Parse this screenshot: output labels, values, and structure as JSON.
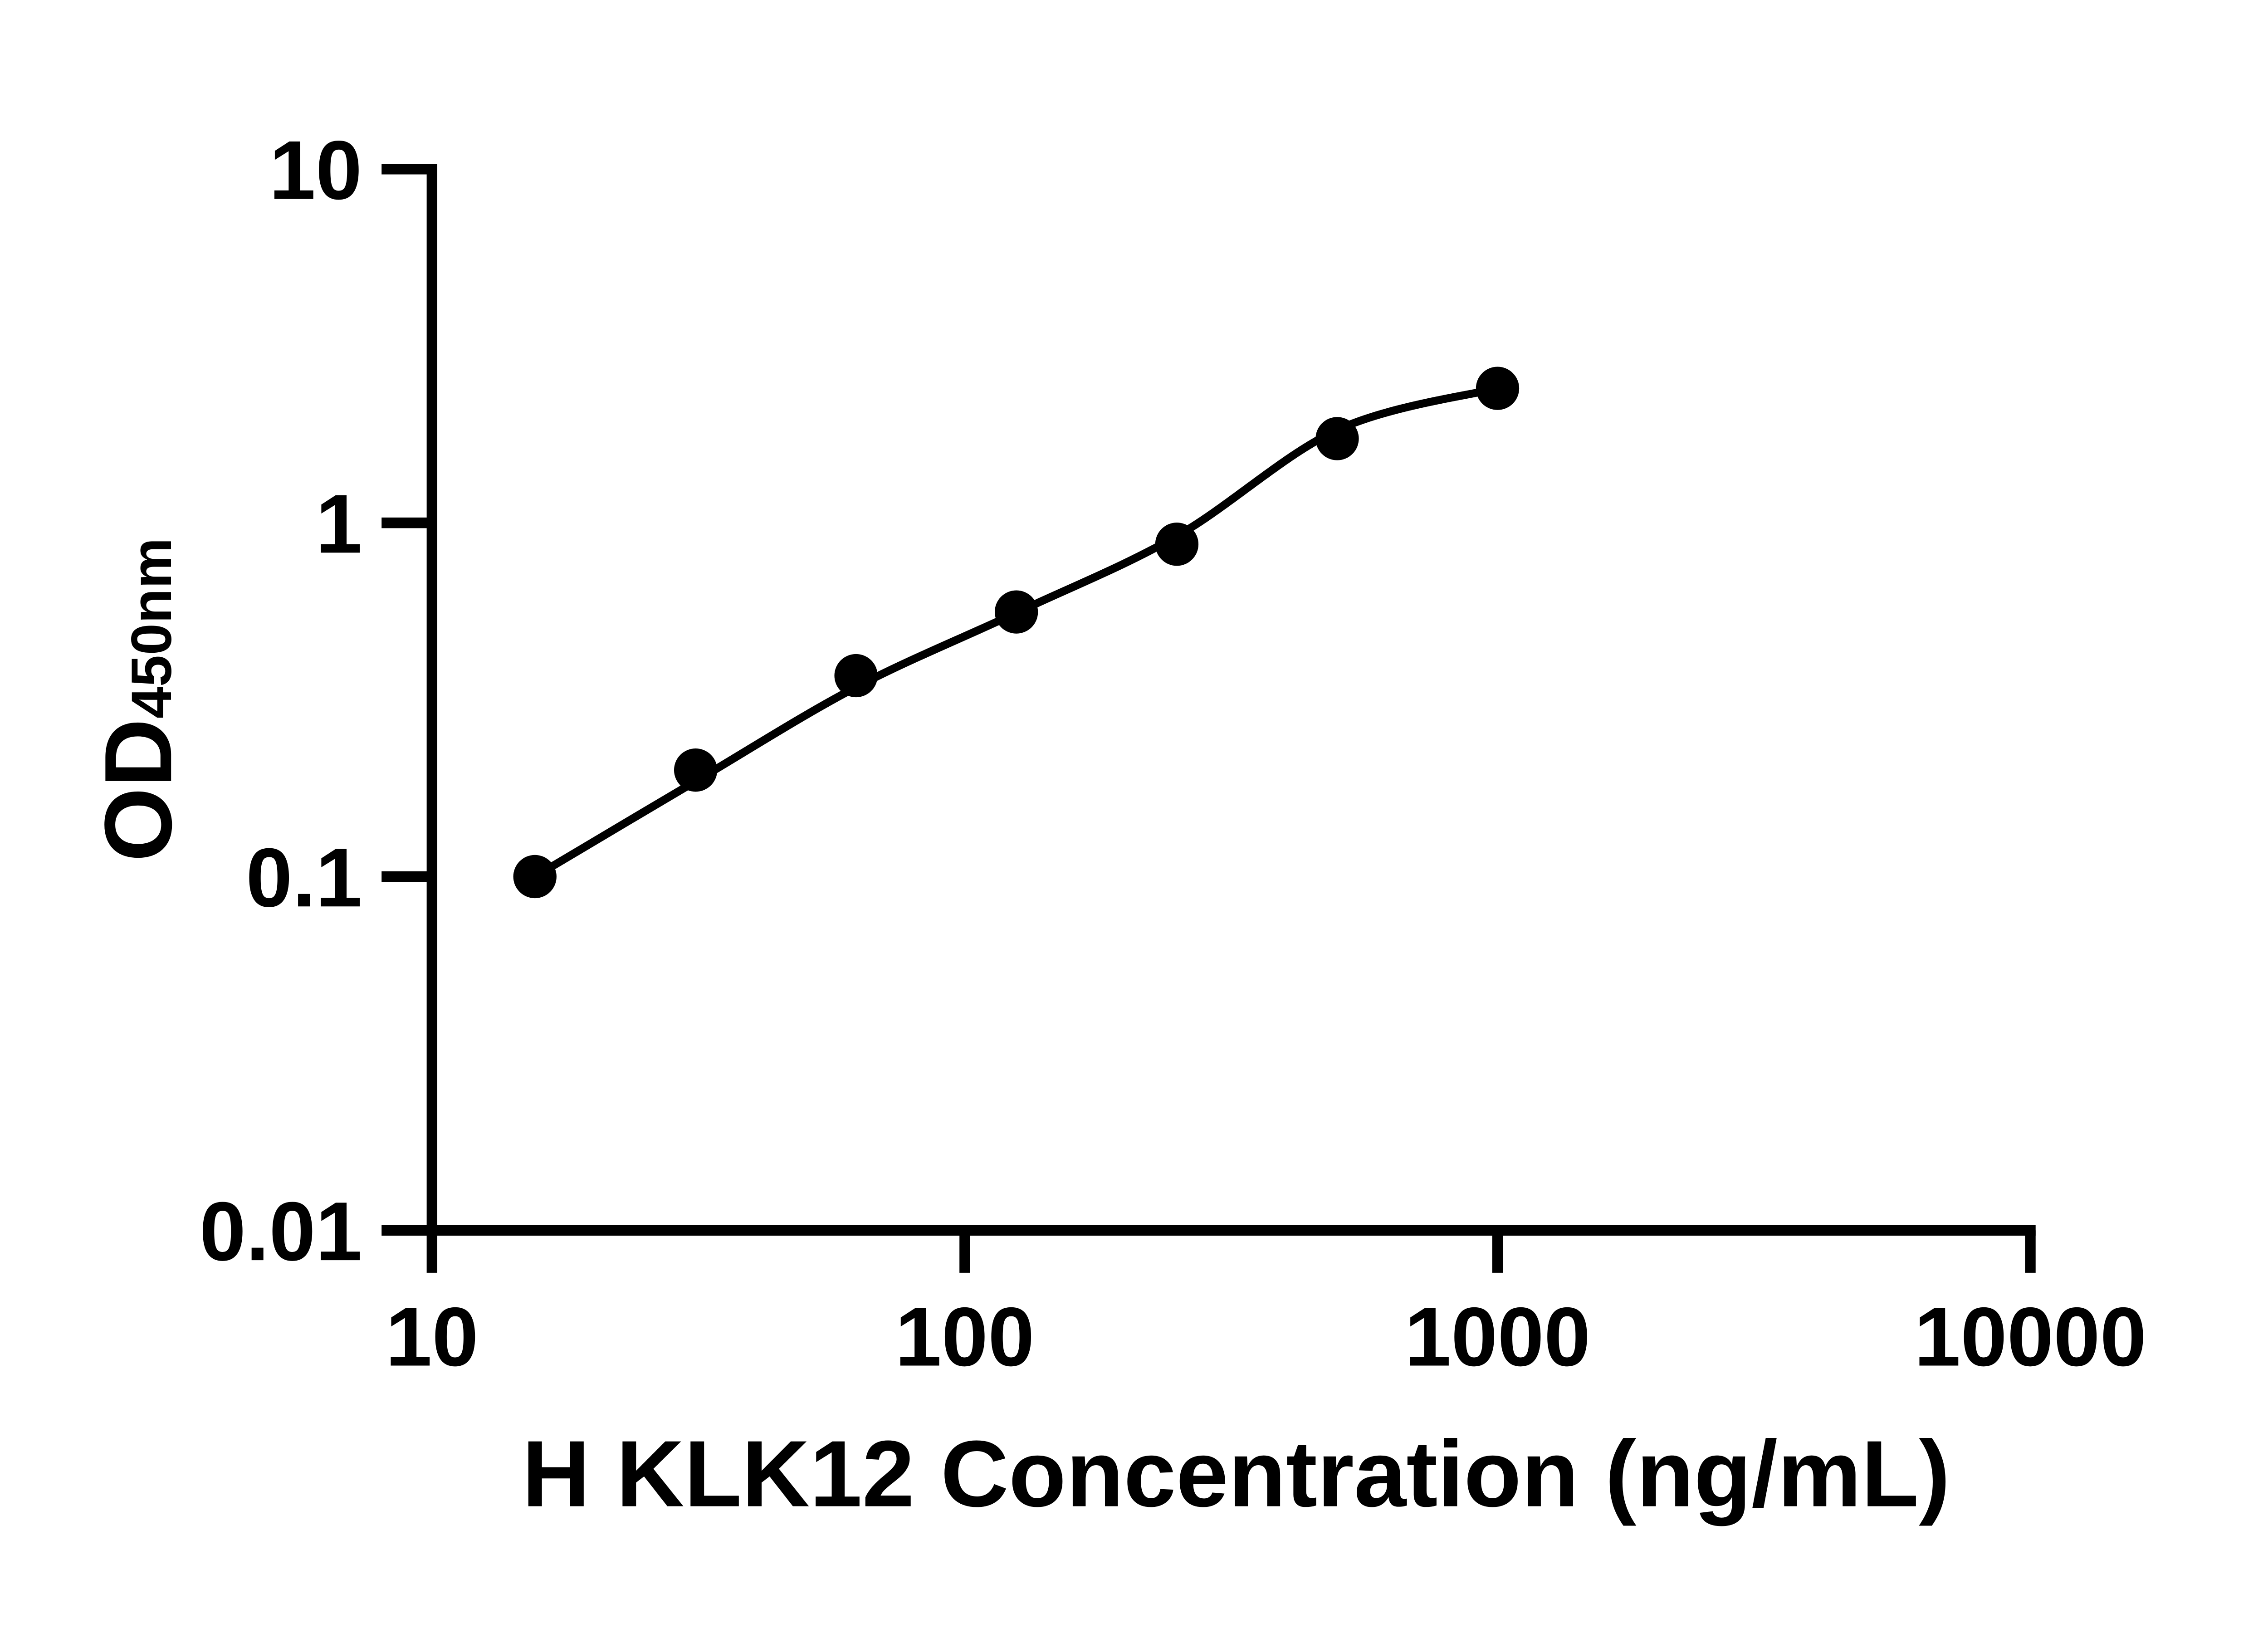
{
  "figure": {
    "background_color": "#ffffff",
    "ink_color": "#000000"
  },
  "chart_data": {
    "type": "scatter",
    "title": "",
    "xlabel": "H KLK12 Concentration (ng/mL)",
    "ylabel_main": "OD",
    "ylabel_subscript": "450nm",
    "x_scale": "log10",
    "y_scale": "log10",
    "xlim": [
      10,
      10000
    ],
    "ylim": [
      0.01,
      10
    ],
    "x_ticks": [
      10,
      100,
      1000,
      10000
    ],
    "x_tick_labels": [
      "10",
      "100",
      "1000",
      "10000"
    ],
    "y_ticks": [
      10,
      1,
      0.1,
      0.01
    ],
    "y_tick_labels": [
      "10",
      "1",
      "0.1",
      "0.01"
    ],
    "grid": false,
    "legend": false,
    "series": [
      {
        "name": "standard-points",
        "marker": "filled-circle",
        "x": [
          15.6,
          31.25,
          62.5,
          125,
          250,
          500,
          1000
        ],
        "y": [
          0.1,
          0.2,
          0.37,
          0.56,
          0.87,
          1.73,
          2.4
        ]
      }
    ],
    "fit_curve": {
      "name": "four-parameter-fit",
      "x": [
        15.6,
        31.25,
        62.5,
        125,
        250,
        500,
        1000
      ],
      "y": [
        0.1,
        0.186,
        0.343,
        0.557,
        0.917,
        1.83,
        2.4
      ]
    }
  }
}
